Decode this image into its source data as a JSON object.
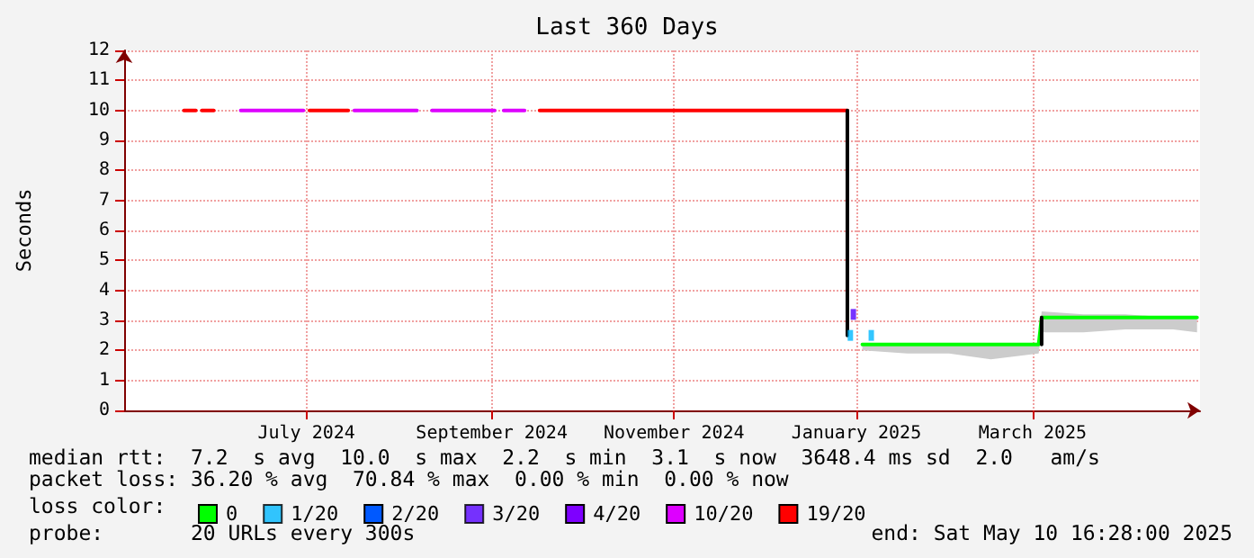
{
  "chart_data": {
    "type": "line",
    "title": "Last 360 Days",
    "ylabel": "Seconds",
    "legend_title": "loss color:",
    "xlim": [
      "2024-05-15",
      "2025-05-10"
    ],
    "xticks": [
      {
        "value": "2024-07-15",
        "label": "July 2024"
      },
      {
        "value": "2024-09-15",
        "label": "September 2024"
      },
      {
        "value": "2024-11-15",
        "label": "November 2024"
      },
      {
        "value": "2025-01-15",
        "label": "January 2025"
      },
      {
        "value": "2025-03-15",
        "label": "March 2025"
      }
    ],
    "ylim": [
      0,
      12
    ],
    "yticks": [
      0,
      1,
      2,
      3,
      4,
      5,
      6,
      7,
      8,
      9,
      10,
      11,
      12
    ],
    "grid": true,
    "legend": "bottom",
    "marker": "none",
    "line_style": "solid",
    "series": [
      {
        "name": "0",
        "color": "#00ff00",
        "x": [
          "2025-01-17",
          "2025-02-01",
          "2025-02-15",
          "2025-03-01",
          "2025-03-17",
          "2025-03-18",
          "2025-04-01",
          "2025-04-15",
          "2025-05-01",
          "2025-05-09"
        ],
        "values": [
          2.2,
          2.2,
          2.2,
          2.2,
          2.2,
          3.1,
          3.1,
          3.1,
          3.1,
          3.1
        ],
        "lower": [
          2.0,
          1.9,
          1.9,
          1.7,
          1.9,
          2.6,
          2.6,
          2.7,
          2.7,
          2.6
        ],
        "upper": [
          2.2,
          2.2,
          2.2,
          2.2,
          2.2,
          3.3,
          3.2,
          3.2,
          3.1,
          3.1
        ]
      },
      {
        "name": "1/20",
        "color": "#00b8ff",
        "type": "scatter",
        "marker": "square",
        "x": [
          "2025-01-13",
          "2025-01-20"
        ],
        "values": [
          2.5,
          2.5
        ]
      },
      {
        "name": "2/20",
        "color": "#0059ff"
      },
      {
        "name": "3/20",
        "color": "#5500ff",
        "type": "scatter",
        "marker": "square",
        "x": [
          "2025-01-14"
        ],
        "values": [
          3.2
        ]
      },
      {
        "name": "4/20",
        "color": "#7e00ff"
      },
      {
        "name": "10/20",
        "color": "#dd00ff",
        "x": [
          "2024-06-23",
          "2024-07-14",
          "2024-07-15",
          "2024-07-31",
          "2024-08-21",
          "2024-08-23",
          "2024-08-26",
          "2024-09-16",
          "2024-09-17",
          "2024-09-19",
          "2024-09-26"
        ],
        "values": [
          10,
          10,
          null,
          10,
          10,
          null,
          10,
          10,
          null,
          10,
          10
        ]
      },
      {
        "name": "19/20",
        "color": "#ff0000",
        "x": [
          "2024-06-04",
          "2024-06-08",
          "2024-06-09",
          "2024-06-10",
          "2024-06-14",
          "2024-06-15",
          "2024-07-16",
          "2024-07-29",
          "2024-07-30",
          "2024-10-01",
          "2025-01-12"
        ],
        "values": [
          10,
          10,
          null,
          10,
          10,
          null,
          10,
          10,
          null,
          10,
          10
        ]
      },
      {
        "color": "#000000",
        "x": [
          "2025-01-12",
          "2025-01-12",
          "2025-01-13",
          "2025-03-18",
          "2025-03-18"
        ],
        "values": [
          10,
          2.5,
          null,
          2.2,
          3.1
        ]
      }
    ],
    "annotations": [
      "median rtt:  7.2  s avg  10.0  s max  2.2  s min  3.1  s now  3648.4 ms sd  2.0   am/s",
      "packet loss: 36.20 % avg  70.84 % max  0.00 % min  0.00 % now",
      "probe:       20 URLs every 300s",
      "end: Sat May 10 16:28:00 2025"
    ]
  }
}
